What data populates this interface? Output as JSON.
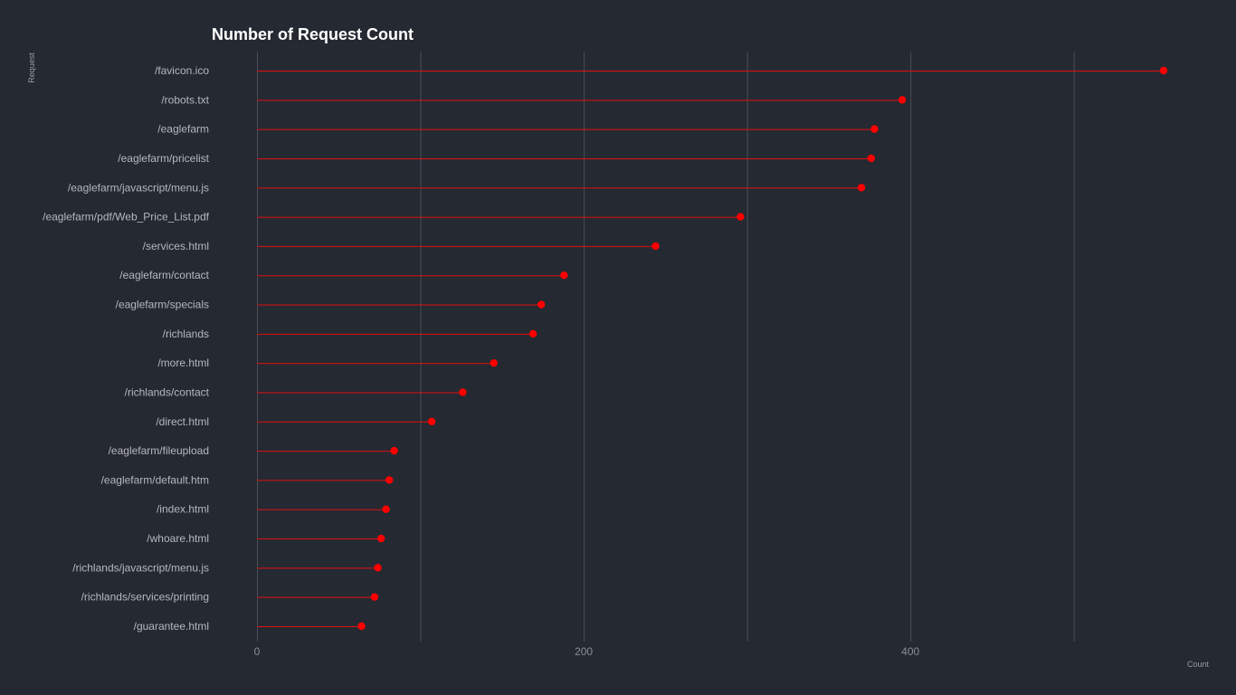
{
  "chart_data": {
    "type": "lollipop",
    "title": "Number of Request Count",
    "xlabel": "Count",
    "ylabel": "Request",
    "xlim": [
      0,
      555
    ],
    "xticks": [
      0,
      200,
      400
    ],
    "grid_x": [
      0,
      100,
      200,
      300,
      400,
      500
    ],
    "categories": [
      "/favicon.ico",
      "/robots.txt",
      "/eaglefarm",
      "/eaglefarm/pricelist",
      "/eaglefarm/javascript/menu.js",
      "/eaglefarm/pdf/Web_Price_List.pdf",
      "/services.html",
      "/eaglefarm/contact",
      "/eaglefarm/specials",
      "/richlands",
      "/more.html",
      "/richlands/contact",
      "/direct.html",
      "/eaglefarm/fileupload",
      "/eaglefarm/default.htm",
      "/index.html",
      "/whoare.html",
      "/richlands/javascript/menu.js",
      "/richlands/services/printing",
      "/guarantee.html"
    ],
    "values": [
      555,
      395,
      378,
      376,
      370,
      296,
      244,
      188,
      174,
      169,
      145,
      126,
      107,
      84,
      81,
      79,
      76,
      74,
      72,
      64
    ],
    "colors": {
      "background": "#252932",
      "marker": "#ff0000",
      "stem": "#e01010",
      "grid": "#4a4e57"
    }
  }
}
